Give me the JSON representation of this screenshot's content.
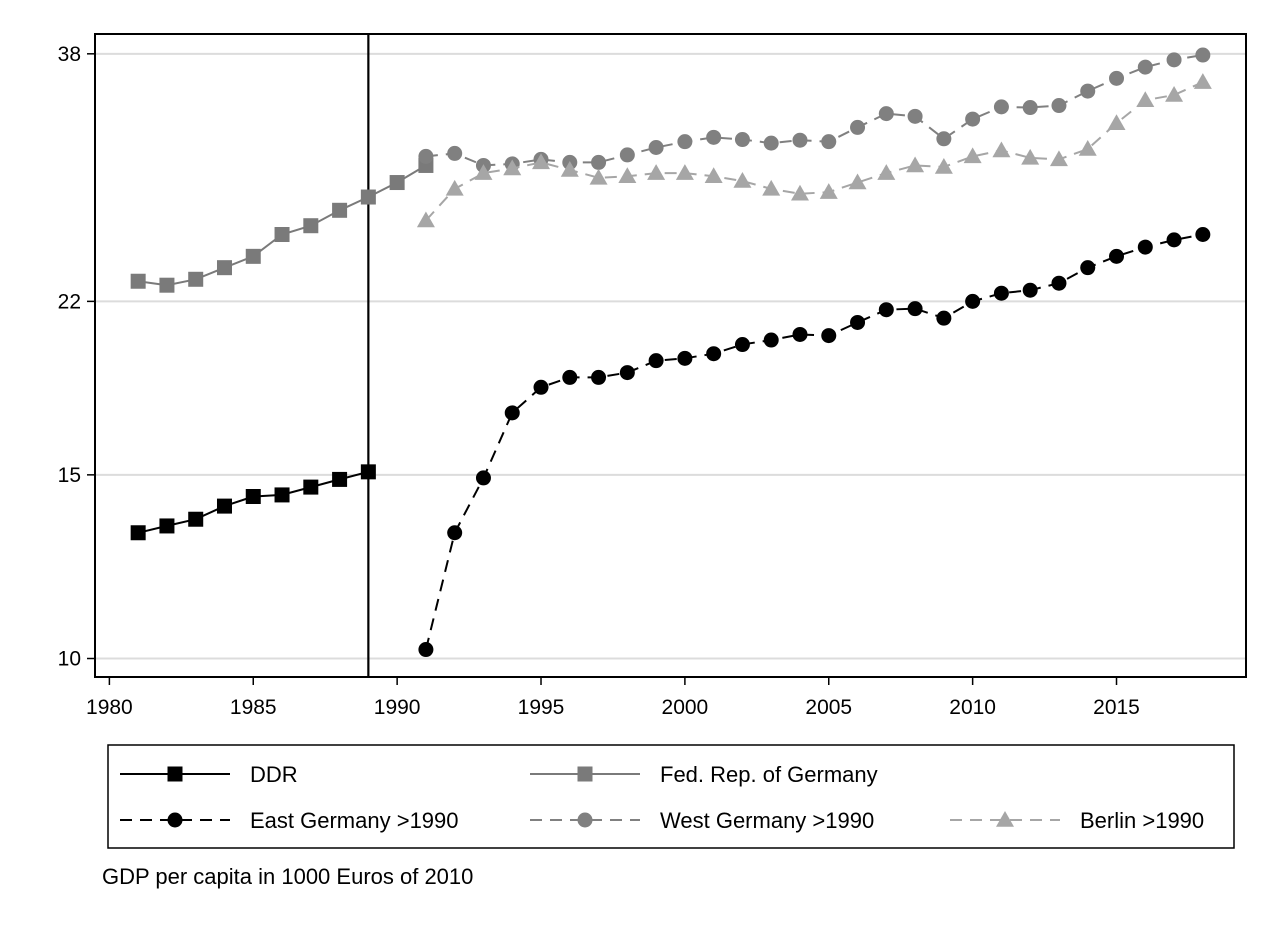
{
  "note": "GDP per capita in 1000 Euros of 2010",
  "chart_data": {
    "type": "line",
    "title": "",
    "xlabel": "",
    "ylabel": "",
    "y_scale": "log",
    "xlim": [
      1979.5,
      2019.5
    ],
    "ylim": [
      9.6,
      39.7
    ],
    "x_ticks": [
      1980,
      1985,
      1990,
      1995,
      2000,
      2005,
      2010,
      2015
    ],
    "y_ticks": [
      10,
      15,
      22,
      38
    ],
    "horizontal_grid": true,
    "vertical_reference_line": 1989,
    "legend_position": "bottom",
    "colors": {
      "ddr": "#000000",
      "frg": "#7a7a7a",
      "east": "#000000",
      "west": "#808080",
      "berlin": "#a6a6a6",
      "grid": "#dcdcdc"
    },
    "series": [
      {
        "key": "ddr",
        "name": "DDR",
        "marker": "square",
        "line": "solid",
        "x": [
          1981,
          1982,
          1983,
          1984,
          1985,
          1986,
          1987,
          1988,
          1989
        ],
        "y": [
          13.2,
          13.4,
          13.6,
          14.0,
          14.3,
          14.35,
          14.6,
          14.85,
          15.1
        ]
      },
      {
        "key": "frg",
        "name": "Fed. Rep. of Germany",
        "marker": "square",
        "line": "solid",
        "x": [
          1981,
          1982,
          1983,
          1984,
          1985,
          1986,
          1987,
          1988,
          1989,
          1990,
          1991
        ],
        "y": [
          23.0,
          22.8,
          23.1,
          23.7,
          24.3,
          25.5,
          26.0,
          26.9,
          27.7,
          28.6,
          29.7
        ]
      },
      {
        "key": "east",
        "name": "East Germany >1990",
        "marker": "circle",
        "line": "dashed",
        "x": [
          1991,
          1992,
          1993,
          1994,
          1995,
          1996,
          1997,
          1998,
          1999,
          2000,
          2001,
          2002,
          2003,
          2004,
          2005,
          2006,
          2007,
          2008,
          2009,
          2010,
          2011,
          2012,
          2013,
          2014,
          2015,
          2016,
          2017,
          2018
        ],
        "y": [
          10.2,
          13.2,
          14.9,
          17.2,
          18.2,
          18.6,
          18.6,
          18.8,
          19.3,
          19.4,
          19.6,
          20.0,
          20.2,
          20.45,
          20.4,
          21.0,
          21.6,
          21.65,
          21.2,
          22.0,
          22.4,
          22.55,
          22.9,
          23.7,
          24.3,
          24.8,
          25.2,
          25.5
        ]
      },
      {
        "key": "west",
        "name": "West Germany >1990",
        "marker": "circle",
        "line": "dashed",
        "x": [
          1991,
          1992,
          1993,
          1994,
          1995,
          1996,
          1997,
          1998,
          1999,
          2000,
          2001,
          2002,
          2003,
          2004,
          2005,
          2006,
          2007,
          2008,
          2009,
          2010,
          2011,
          2012,
          2013,
          2014,
          2015,
          2016,
          2017,
          2018
        ],
        "y": [
          30.3,
          30.5,
          29.7,
          29.8,
          30.1,
          29.9,
          29.9,
          30.4,
          30.9,
          31.3,
          31.6,
          31.45,
          31.2,
          31.4,
          31.3,
          32.3,
          33.3,
          33.1,
          31.5,
          32.9,
          33.8,
          33.75,
          33.9,
          35.0,
          36.0,
          36.9,
          37.5,
          37.9
        ]
      },
      {
        "key": "berlin",
        "name": "Berlin >1990",
        "marker": "triangle",
        "line": "dashed",
        "x": [
          1991,
          1992,
          1993,
          1994,
          1995,
          1996,
          1997,
          1998,
          1999,
          2000,
          2001,
          2002,
          2003,
          2004,
          2005,
          2006,
          2007,
          2008,
          2009,
          2010,
          2011,
          2012,
          2013,
          2014,
          2015,
          2016,
          2017,
          2018
        ],
        "y": [
          26.3,
          28.2,
          29.2,
          29.5,
          29.9,
          29.4,
          28.9,
          29.0,
          29.2,
          29.2,
          29.0,
          28.7,
          28.2,
          27.9,
          28.0,
          28.6,
          29.2,
          29.7,
          29.6,
          30.3,
          30.7,
          30.2,
          30.1,
          30.8,
          32.6,
          34.3,
          34.7,
          35.7
        ]
      }
    ]
  }
}
